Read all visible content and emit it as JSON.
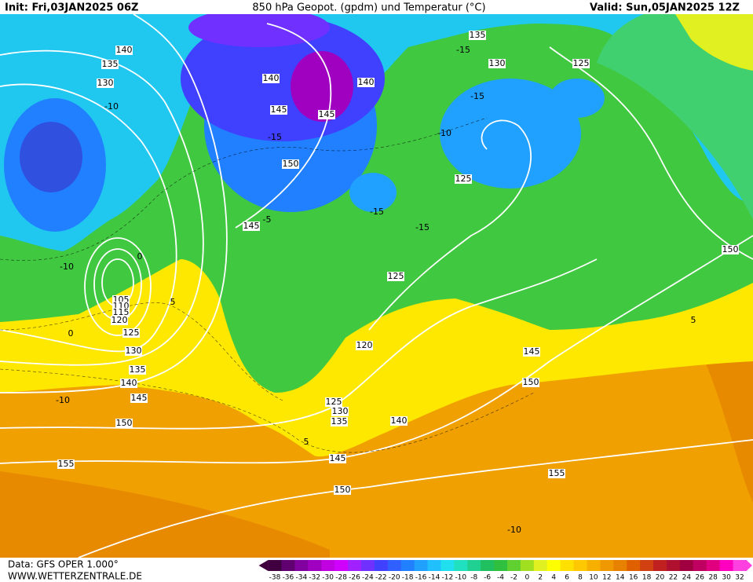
{
  "header": {
    "init": "Init: Fri,03JAN2025 06Z",
    "title": "850 hPa Geopot. (gpdm) und Temperatur (°C)",
    "valid": "Valid: Sun,05JAN2025 12Z"
  },
  "geopotential_labels": [
    140,
    135,
    130,
    140,
    145,
    145,
    140,
    135,
    130,
    125,
    150,
    125,
    145,
    125,
    150,
    105,
    110,
    115,
    120,
    125,
    130,
    135,
    140,
    145,
    120,
    145,
    150,
    125,
    130,
    135,
    140,
    150,
    145,
    155,
    150,
    155
  ],
  "temperature_labels": [
    -10,
    -15,
    -15,
    -15,
    -10,
    -15,
    -15,
    -10,
    0,
    5,
    0,
    5,
    -10,
    -10,
    5,
    -5
  ],
  "colorbar": {
    "labels": [
      -38,
      -36,
      -34,
      -32,
      -30,
      -28,
      -26,
      -24,
      -22,
      -20,
      -18,
      -16,
      -14,
      -12,
      -10,
      -8,
      -6,
      -4,
      -2,
      0,
      2,
      4,
      6,
      8,
      10,
      12,
      14,
      16,
      18,
      20,
      22,
      24,
      26,
      28,
      30,
      32
    ],
    "colors": [
      "#400040",
      "#600070",
      "#8000a0",
      "#a000c0",
      "#c000e0",
      "#d000ff",
      "#a020ff",
      "#7030ff",
      "#4040ff",
      "#3060ff",
      "#2080ff",
      "#20a0ff",
      "#20c0ff",
      "#20e0f0",
      "#20e0c0",
      "#20d090",
      "#20c060",
      "#30c040",
      "#60d030",
      "#a0e020",
      "#e0f020",
      "#ffff00",
      "#ffe000",
      "#ffc800",
      "#f8b000",
      "#f09800",
      "#e88000",
      "#e06000",
      "#d04010",
      "#c02020",
      "#b01030",
      "#a00040",
      "#c00060",
      "#e00080",
      "#ff00c0",
      "#ff40e0"
    ]
  },
  "footer": {
    "data": "Data: GFS OPER 1.000°",
    "site": "WWW.WETTERZENTRALE.DE"
  }
}
